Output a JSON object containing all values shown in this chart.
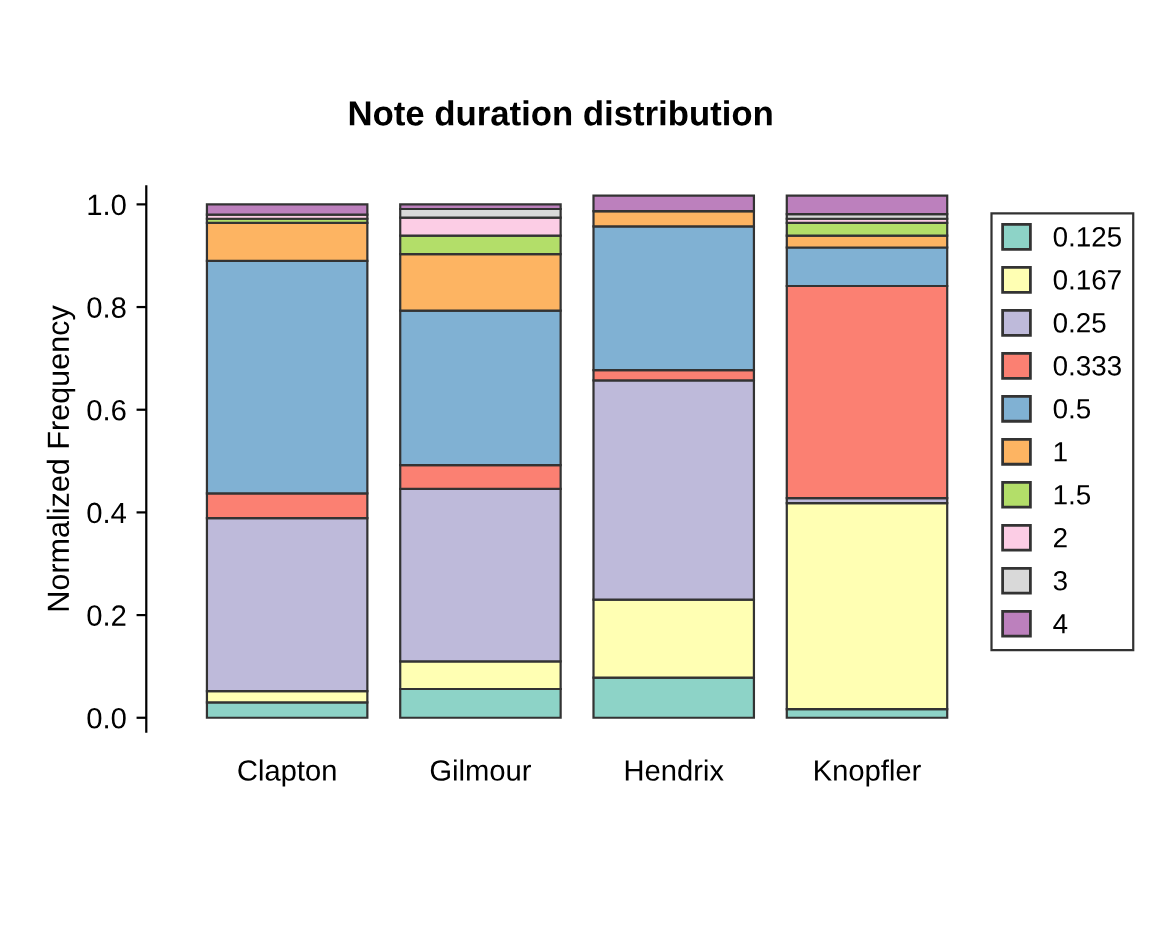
{
  "chart_data": {
    "type": "bar",
    "stacked": true,
    "title": "Note duration distribution",
    "ylabel": "Normalized Frequency",
    "categories": [
      "Clapton",
      "Gilmour",
      "Hendrix",
      "Knopfler"
    ],
    "series": [
      {
        "name": "0.125",
        "color": "#8dd3c7",
        "values": [
          0.03,
          0.056,
          0.078,
          0.017
        ]
      },
      {
        "name": "0.167",
        "color": "#ffffb3",
        "values": [
          0.022,
          0.054,
          0.152,
          0.401
        ]
      },
      {
        "name": "0.25",
        "color": "#bebada",
        "values": [
          0.337,
          0.336,
          0.427,
          0.01
        ]
      },
      {
        "name": "0.333",
        "color": "#fb8072",
        "values": [
          0.048,
          0.046,
          0.02,
          0.413
        ]
      },
      {
        "name": "0.5",
        "color": "#80b1d3",
        "values": [
          0.453,
          0.301,
          0.28,
          0.075
        ]
      },
      {
        "name": "1",
        "color": "#fdb462",
        "values": [
          0.074,
          0.11,
          0.03,
          0.023
        ]
      },
      {
        "name": "1.5",
        "color": "#b3de69",
        "values": [
          0.008,
          0.036,
          null,
          0.025
        ]
      },
      {
        "name": "2",
        "color": "#fccde5",
        "values": [
          0.008,
          0.035,
          0.0,
          0.008
        ]
      },
      {
        "name": "3",
        "color": "#d9d9d9",
        "values": [
          null,
          0.017,
          null,
          0.009
        ]
      },
      {
        "name": "4",
        "color": "#bc80bd",
        "values": [
          0.02,
          0.009,
          0.03,
          0.036
        ]
      }
    ],
    "ylim": [
      -0.027,
      1.035
    ],
    "yticks": [
      {
        "value": 0,
        "label": "0.0"
      },
      {
        "value": 0.2,
        "label": "0.2"
      },
      {
        "value": 0.4,
        "label": "0.4"
      },
      {
        "value": 0.6,
        "label": "0.6"
      },
      {
        "value": 0.8,
        "label": "0.8"
      },
      {
        "value": 1,
        "label": "1.0"
      }
    ],
    "grid": false,
    "legend": "right"
  }
}
